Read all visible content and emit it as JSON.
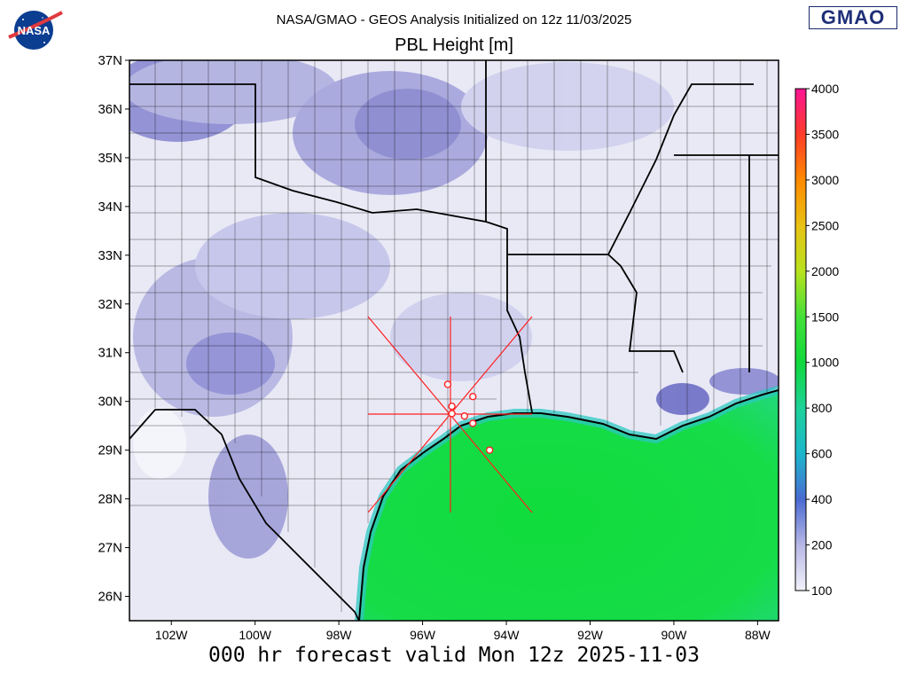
{
  "header": {
    "line1": "NASA/GMAO - GEOS Analysis Initialized on 12z 11/03/2025",
    "title": "PBL Height [m]"
  },
  "logos": {
    "nasa": "NASA",
    "gmao": "GMAO"
  },
  "footer": {
    "text": "000 hr forecast valid Mon 12z 2025-11-03"
  },
  "map": {
    "lon_range": [
      -103,
      -87.5
    ],
    "lat_range": [
      25.5,
      37
    ],
    "lat_ticks": [
      {
        "value": 37,
        "label": "37N"
      },
      {
        "value": 36,
        "label": "36N"
      },
      {
        "value": 35,
        "label": "35N"
      },
      {
        "value": 34,
        "label": "34N"
      },
      {
        "value": 33,
        "label": "33N"
      },
      {
        "value": 32,
        "label": "32N"
      },
      {
        "value": 31,
        "label": "31N"
      },
      {
        "value": 30,
        "label": "30N"
      },
      {
        "value": 29,
        "label": "29N"
      },
      {
        "value": 28,
        "label": "28N"
      },
      {
        "value": 27,
        "label": "27N"
      },
      {
        "value": 26,
        "label": "26N"
      }
    ],
    "lon_ticks": [
      {
        "value": -102,
        "label": "102W"
      },
      {
        "value": -100,
        "label": "100W"
      },
      {
        "value": -98,
        "label": "98W"
      },
      {
        "value": -96,
        "label": "96W"
      },
      {
        "value": -94,
        "label": "94W"
      },
      {
        "value": -92,
        "label": "92W"
      },
      {
        "value": -90,
        "label": "90W"
      },
      {
        "value": -88,
        "label": "88W"
      }
    ],
    "station_markers": [
      {
        "lon": -95.4,
        "lat": 30.35
      },
      {
        "lon": -95.3,
        "lat": 29.9
      },
      {
        "lon": -95.3,
        "lat": 29.75
      },
      {
        "lon": -94.8,
        "lat": 30.1
      },
      {
        "lon": -95.0,
        "lat": 29.7
      },
      {
        "lon": -94.8,
        "lat": 29.55
      },
      {
        "lon": -94.4,
        "lat": 29.0
      }
    ],
    "cross_center": {
      "lon": -95.35,
      "lat": 29.75
    },
    "colors": {
      "land_light": "#eeeef8",
      "land_mid": "#c5c5e8",
      "land_dark": "#8a8ad2",
      "gulf": "#14e046",
      "gulf_coast": "#28d9a0",
      "shelf": "#36c6d6",
      "cross": "#ff2020",
      "county_lines": "#000000"
    }
  },
  "colorbar": {
    "labels": [
      "4000",
      "3500",
      "3000",
      "2500",
      "2000",
      "1500",
      "1000",
      "800",
      "600",
      "400",
      "200",
      "100"
    ],
    "colors": [
      "#ff1493",
      "#ff3c28",
      "#ff8a00",
      "#e8c214",
      "#b8e21e",
      "#44e038",
      "#10d83c",
      "#1ed29a",
      "#1cb6cc",
      "#4a6ad2",
      "#b8b8e6",
      "#f2f2fa"
    ]
  }
}
